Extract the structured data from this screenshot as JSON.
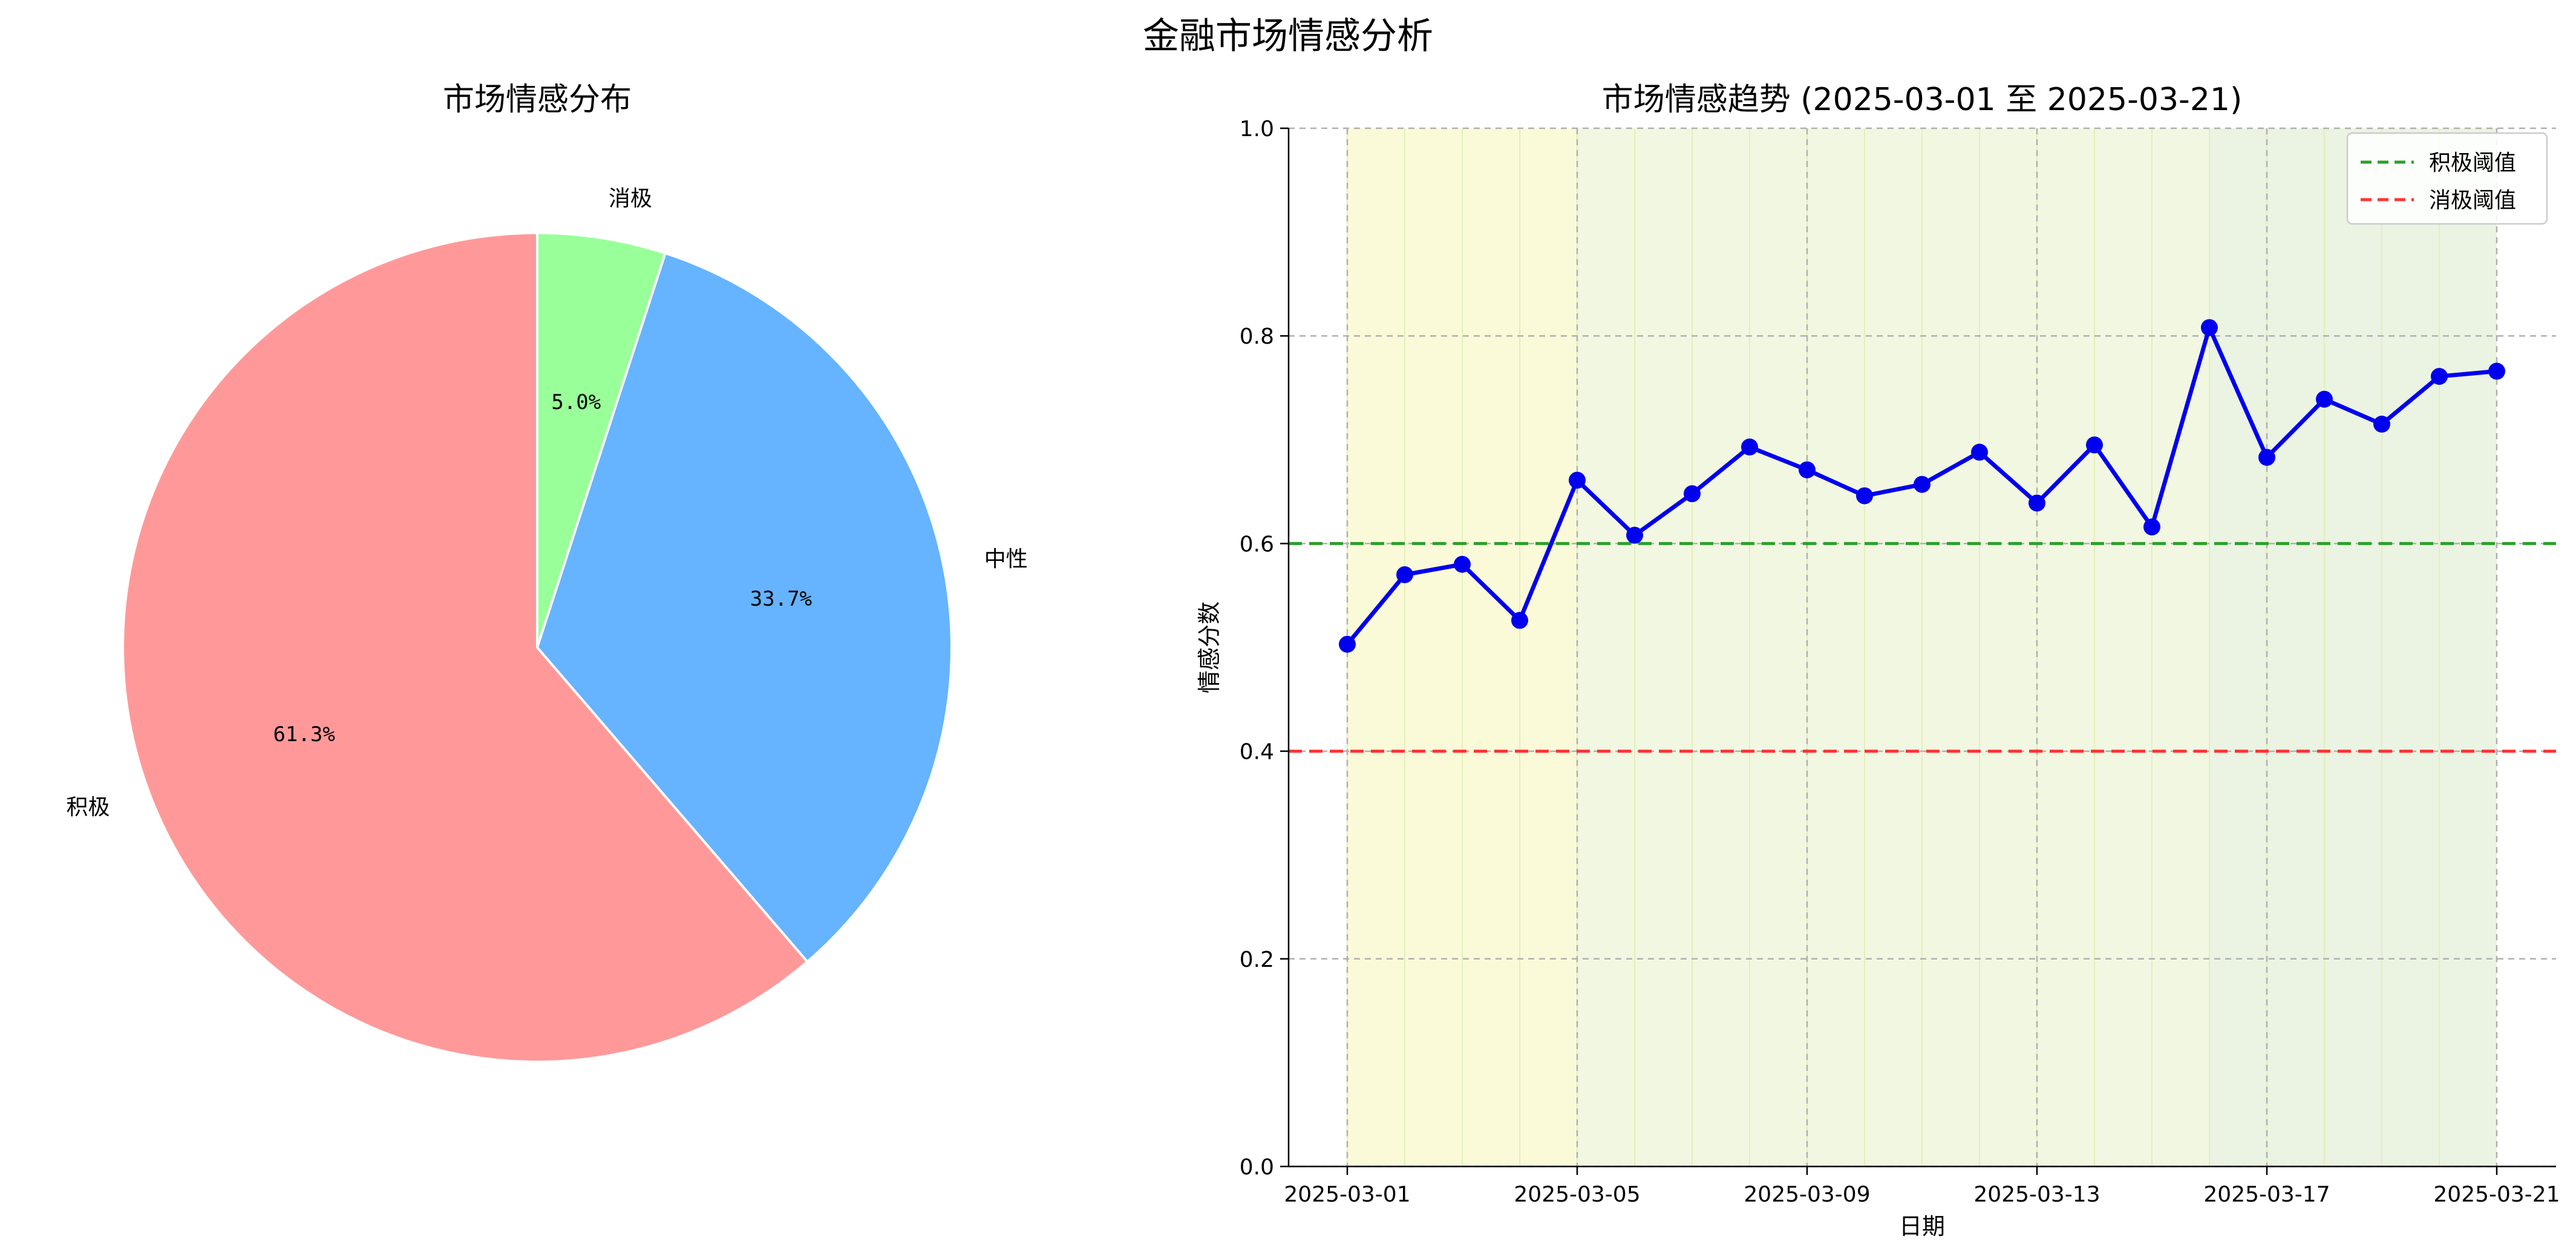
{
  "suptitle": "金融市场情感分析",
  "chart_data": [
    {
      "type": "pie",
      "title": "市场情感分布",
      "labels": [
        "积极",
        "中性",
        "消极"
      ],
      "values": [
        61.3,
        33.7,
        5.0
      ],
      "value_labels": [
        "61.3%",
        "33.7%",
        "5.0%"
      ],
      "colors": [
        "#ff9999",
        "#66b3ff",
        "#99ff99"
      ],
      "start_angle_deg": 90,
      "direction": "counterclockwise"
    },
    {
      "type": "line",
      "title": "市场情感趋势 (2025-03-01 至 2025-03-21)",
      "xlabel": "日期",
      "ylabel": "情感分数",
      "ylim": [
        0,
        1.0
      ],
      "yticks": [
        "0.0",
        "0.2",
        "0.4",
        "0.6",
        "0.8",
        "1.0"
      ],
      "xticks": [
        "2025-03-01",
        "2025-03-05",
        "2025-03-09",
        "2025-03-13",
        "2025-03-17",
        "2025-03-21"
      ],
      "grid": true,
      "legend_position": "top-right",
      "series": [
        {
          "color": "#0000ee",
          "x": [
            "2025-03-01",
            "2025-03-02",
            "2025-03-03",
            "2025-03-04",
            "2025-03-05",
            "2025-03-06",
            "2025-03-07",
            "2025-03-08",
            "2025-03-09",
            "2025-03-10",
            "2025-03-11",
            "2025-03-12",
            "2025-03-13",
            "2025-03-14",
            "2025-03-15",
            "2025-03-16",
            "2025-03-17",
            "2025-03-18",
            "2025-03-19",
            "2025-03-20",
            "2025-03-21"
          ],
          "y": [
            0.503,
            0.57,
            0.58,
            0.526,
            0.661,
            0.608,
            0.648,
            0.693,
            0.671,
            0.646,
            0.657,
            0.688,
            0.639,
            0.695,
            0.616,
            0.808,
            0.683,
            0.739,
            0.715,
            0.761,
            0.766
          ]
        }
      ],
      "reference_lines": [
        {
          "name": "积极阈值",
          "y": 0.6,
          "color": "#2ca02c",
          "style": "dashed"
        },
        {
          "name": "消极阈值",
          "y": 0.4,
          "color": "#ff3333",
          "style": "dashed"
        }
      ],
      "background_band_colors": [
        "#fafad9",
        "#f2f7e2",
        "#ebf3e3"
      ]
    }
  ]
}
